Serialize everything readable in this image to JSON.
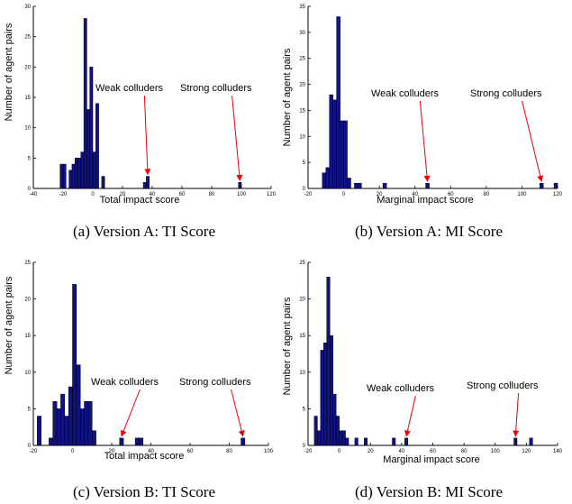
{
  "chart_data": [
    {
      "type": "bar",
      "caption": "(a) Version A: TI Score",
      "xlabel": "Total impact score",
      "ylabel": "Number of agent pairs",
      "xlim": [
        -40,
        120
      ],
      "ylim": [
        0,
        30
      ],
      "xticks": [
        "-40",
        "-20",
        "0",
        "20",
        "40",
        "60",
        "80",
        "100",
        "120"
      ],
      "yticks": [
        "0",
        "5",
        "10",
        "15",
        "20",
        "25",
        "30"
      ],
      "bin_width": 2,
      "bins": [
        {
          "x": -21,
          "y": 4
        },
        {
          "x": -19,
          "y": 4
        },
        {
          "x": -15,
          "y": 3
        },
        {
          "x": -13,
          "y": 4
        },
        {
          "x": -11,
          "y": 5
        },
        {
          "x": -9,
          "y": 5
        },
        {
          "x": -7,
          "y": 6
        },
        {
          "x": -5,
          "y": 28
        },
        {
          "x": -3,
          "y": 13
        },
        {
          "x": -1,
          "y": 20
        },
        {
          "x": 1,
          "y": 6
        },
        {
          "x": 3,
          "y": 14
        },
        {
          "x": 7,
          "y": 2
        },
        {
          "x": 35,
          "y": 1
        },
        {
          "x": 37,
          "y": 2
        },
        {
          "x": 99,
          "y": 1
        }
      ],
      "annotations": [
        {
          "text": "Weak colluders",
          "at": [
            37,
            2
          ]
        },
        {
          "text": "Strong colluders",
          "at": [
            99,
            1
          ]
        }
      ]
    },
    {
      "type": "bar",
      "caption": "(b) Version A: MI Score",
      "xlabel": "Marginal impact score",
      "ylabel": "Number of agent pairs",
      "xlim": [
        -20,
        120
      ],
      "ylim": [
        0,
        35
      ],
      "xticks": [
        "-20",
        "0",
        "20",
        "40",
        "60",
        "80",
        "100",
        "120"
      ],
      "yticks": [
        "0",
        "5",
        "10",
        "15",
        "20",
        "25",
        "30",
        "35"
      ],
      "bin_width": 2,
      "bins": [
        {
          "x": -11,
          "y": 3
        },
        {
          "x": -9,
          "y": 4
        },
        {
          "x": -7,
          "y": 18
        },
        {
          "x": -5,
          "y": 17
        },
        {
          "x": -3,
          "y": 33
        },
        {
          "x": -1,
          "y": 13
        },
        {
          "x": 1,
          "y": 13
        },
        {
          "x": 3,
          "y": 2
        },
        {
          "x": 7,
          "y": 1
        },
        {
          "x": 9,
          "y": 1
        },
        {
          "x": 23,
          "y": 1
        },
        {
          "x": 47,
          "y": 1
        },
        {
          "x": 111,
          "y": 1
        },
        {
          "x": 119,
          "y": 1
        }
      ],
      "annotations": [
        {
          "text": "Weak colluders",
          "at": [
            47,
            1
          ]
        },
        {
          "text": "Strong colluders",
          "at": [
            111,
            1
          ]
        }
      ]
    },
    {
      "type": "bar",
      "caption": "(c) Version B: TI Score",
      "xlabel": "Total impact score",
      "ylabel": "Number of agent pairs",
      "xlim": [
        -20,
        100
      ],
      "ylim": [
        0,
        25
      ],
      "xticks": [
        "-20",
        "0",
        "20",
        "40",
        "60",
        "80",
        "100"
      ],
      "yticks": [
        "0",
        "5",
        "10",
        "15",
        "20",
        "25"
      ],
      "bin_width": 2,
      "bins": [
        {
          "x": -17,
          "y": 4
        },
        {
          "x": -11,
          "y": 1
        },
        {
          "x": -9,
          "y": 6
        },
        {
          "x": -7,
          "y": 5
        },
        {
          "x": -5,
          "y": 7
        },
        {
          "x": -3,
          "y": 4
        },
        {
          "x": -1,
          "y": 8
        },
        {
          "x": 1,
          "y": 22
        },
        {
          "x": 3,
          "y": 11
        },
        {
          "x": 5,
          "y": 5
        },
        {
          "x": 7,
          "y": 6
        },
        {
          "x": 9,
          "y": 6
        },
        {
          "x": 11,
          "y": 2
        },
        {
          "x": 25,
          "y": 1
        },
        {
          "x": 33,
          "y": 1
        },
        {
          "x": 35,
          "y": 1
        },
        {
          "x": 87,
          "y": 1
        }
      ],
      "annotations": [
        {
          "text": "Weak colluders",
          "at": [
            25,
            1
          ]
        },
        {
          "text": "Strong colluders",
          "at": [
            87,
            1
          ]
        }
      ]
    },
    {
      "type": "bar",
      "caption": "(d) Version B: MI Score",
      "xlabel": "Marginal impact score",
      "ylabel": "Number of agent pairs",
      "xlim": [
        -20,
        140
      ],
      "ylim": [
        0,
        25
      ],
      "xticks": [
        "-20",
        "0",
        "20",
        "40",
        "60",
        "80",
        "100",
        "120",
        "140"
      ],
      "yticks": [
        "0",
        "5",
        "10",
        "15",
        "20",
        "25"
      ],
      "bin_width": 2,
      "bins": [
        {
          "x": -15,
          "y": 4
        },
        {
          "x": -13,
          "y": 2
        },
        {
          "x": -11,
          "y": 13
        },
        {
          "x": -9,
          "y": 14
        },
        {
          "x": -7,
          "y": 23
        },
        {
          "x": -5,
          "y": 15
        },
        {
          "x": -3,
          "y": 7
        },
        {
          "x": -1,
          "y": 4
        },
        {
          "x": 1,
          "y": 2
        },
        {
          "x": 3,
          "y": 2
        },
        {
          "x": 5,
          "y": 1
        },
        {
          "x": 11,
          "y": 1
        },
        {
          "x": 17,
          "y": 1
        },
        {
          "x": 35,
          "y": 1
        },
        {
          "x": 43,
          "y": 1
        },
        {
          "x": 113,
          "y": 1
        },
        {
          "x": 123,
          "y": 1
        }
      ],
      "annotations": [
        {
          "text": "Weak colluders",
          "at": [
            43,
            1
          ]
        },
        {
          "text": "Strong colluders",
          "at": [
            113,
            1
          ]
        }
      ]
    }
  ],
  "colors": {
    "bar_fill": "#0f1280",
    "bar_edge": "#000000",
    "arrow": "#e8000b",
    "axis": "#000000"
  }
}
